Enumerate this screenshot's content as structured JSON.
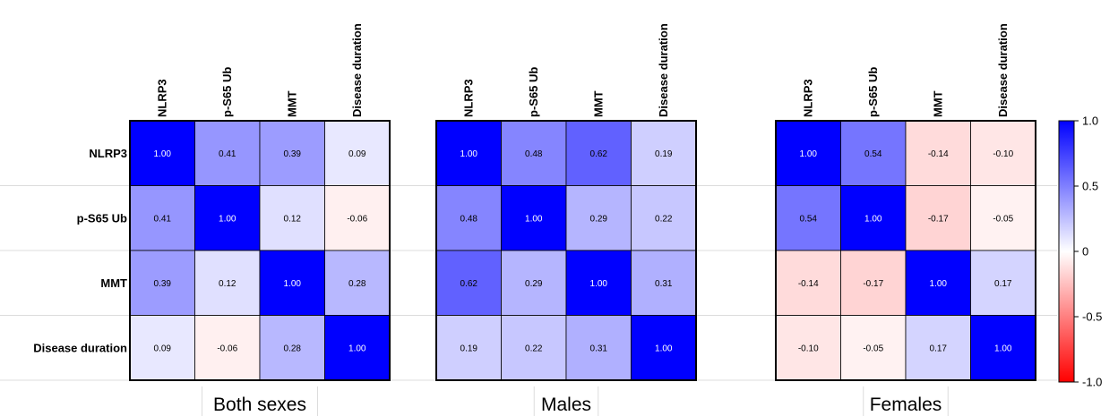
{
  "chart_data": [
    {
      "type": "heatmap",
      "title": "Both sexes",
      "variables": [
        "NLRP3",
        "p-S65 Ub",
        "MMT",
        "Disease duration"
      ],
      "matrix": [
        [
          1.0,
          0.41,
          0.39,
          0.09
        ],
        [
          0.41,
          1.0,
          0.12,
          -0.06
        ],
        [
          0.39,
          0.12,
          1.0,
          0.28
        ],
        [
          0.09,
          -0.06,
          0.28,
          1.0
        ]
      ]
    },
    {
      "type": "heatmap",
      "title": "Males",
      "variables": [
        "NLRP3",
        "p-S65 Ub",
        "MMT",
        "Disease duration"
      ],
      "matrix": [
        [
          1.0,
          0.48,
          0.62,
          0.19
        ],
        [
          0.48,
          1.0,
          0.29,
          0.22
        ],
        [
          0.62,
          0.29,
          1.0,
          0.31
        ],
        [
          0.19,
          0.22,
          0.31,
          1.0
        ]
      ]
    },
    {
      "type": "heatmap",
      "title": "Females",
      "variables": [
        "NLRP3",
        "p-S65 Ub",
        "MMT",
        "Disease duration"
      ],
      "matrix": [
        [
          1.0,
          0.54,
          -0.14,
          -0.1
        ],
        [
          0.54,
          1.0,
          -0.17,
          -0.05
        ],
        [
          -0.14,
          -0.17,
          1.0,
          0.17
        ],
        [
          -0.1,
          -0.05,
          0.17,
          1.0
        ]
      ]
    }
  ],
  "colorbar": {
    "range": [
      -1.0,
      1.0
    ],
    "ticks": [
      {
        "value": 1.0,
        "label": "1.0"
      },
      {
        "value": 0.5,
        "label": "0.5"
      },
      {
        "value": 0,
        "label": "0"
      },
      {
        "value": -0.5,
        "label": "-0.5"
      },
      {
        "value": -1.0,
        "label": "-1.0"
      }
    ],
    "colors": {
      "negative": "#ff0000",
      "zero": "#ffffff",
      "positive": "#0000ff"
    }
  }
}
